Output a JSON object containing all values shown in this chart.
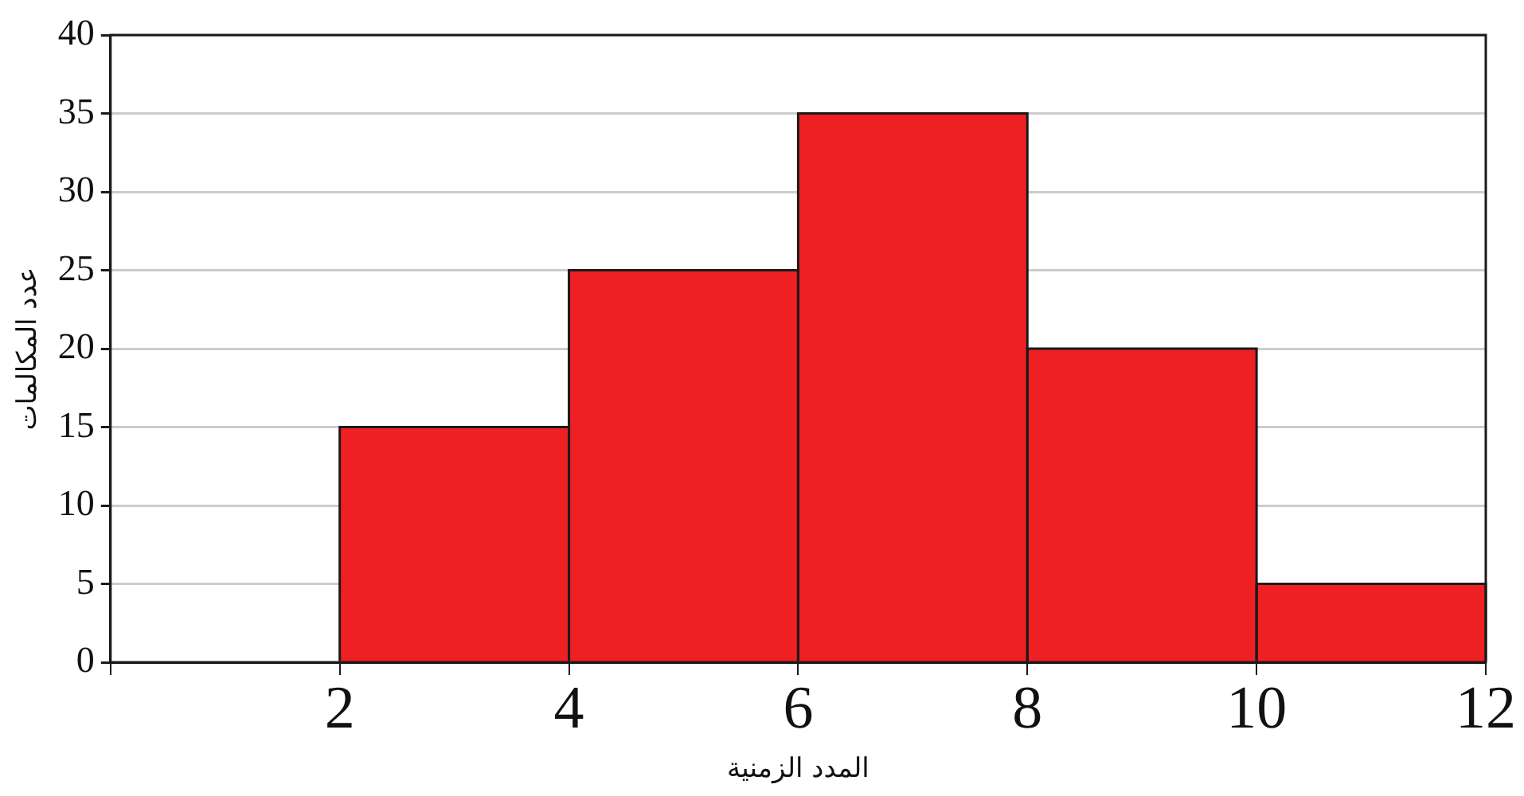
{
  "chart_data": {
    "type": "histogram",
    "xlabel": "المدد الزمنية",
    "ylabel": "عدد المكالمات",
    "bins": [
      2,
      4,
      6,
      8,
      10,
      12
    ],
    "values": [
      15,
      25,
      35,
      20,
      5
    ],
    "color": "#ee2024",
    "xlim": [
      0,
      12
    ],
    "xticks": [
      {
        "value": 0,
        "label": null
      },
      2,
      4,
      6,
      8,
      10,
      12
    ],
    "ylim": [
      0,
      40
    ],
    "yticks": [
      0,
      5,
      10,
      15,
      20,
      25,
      30,
      35,
      40
    ],
    "grid": "y",
    "legend": false
  }
}
